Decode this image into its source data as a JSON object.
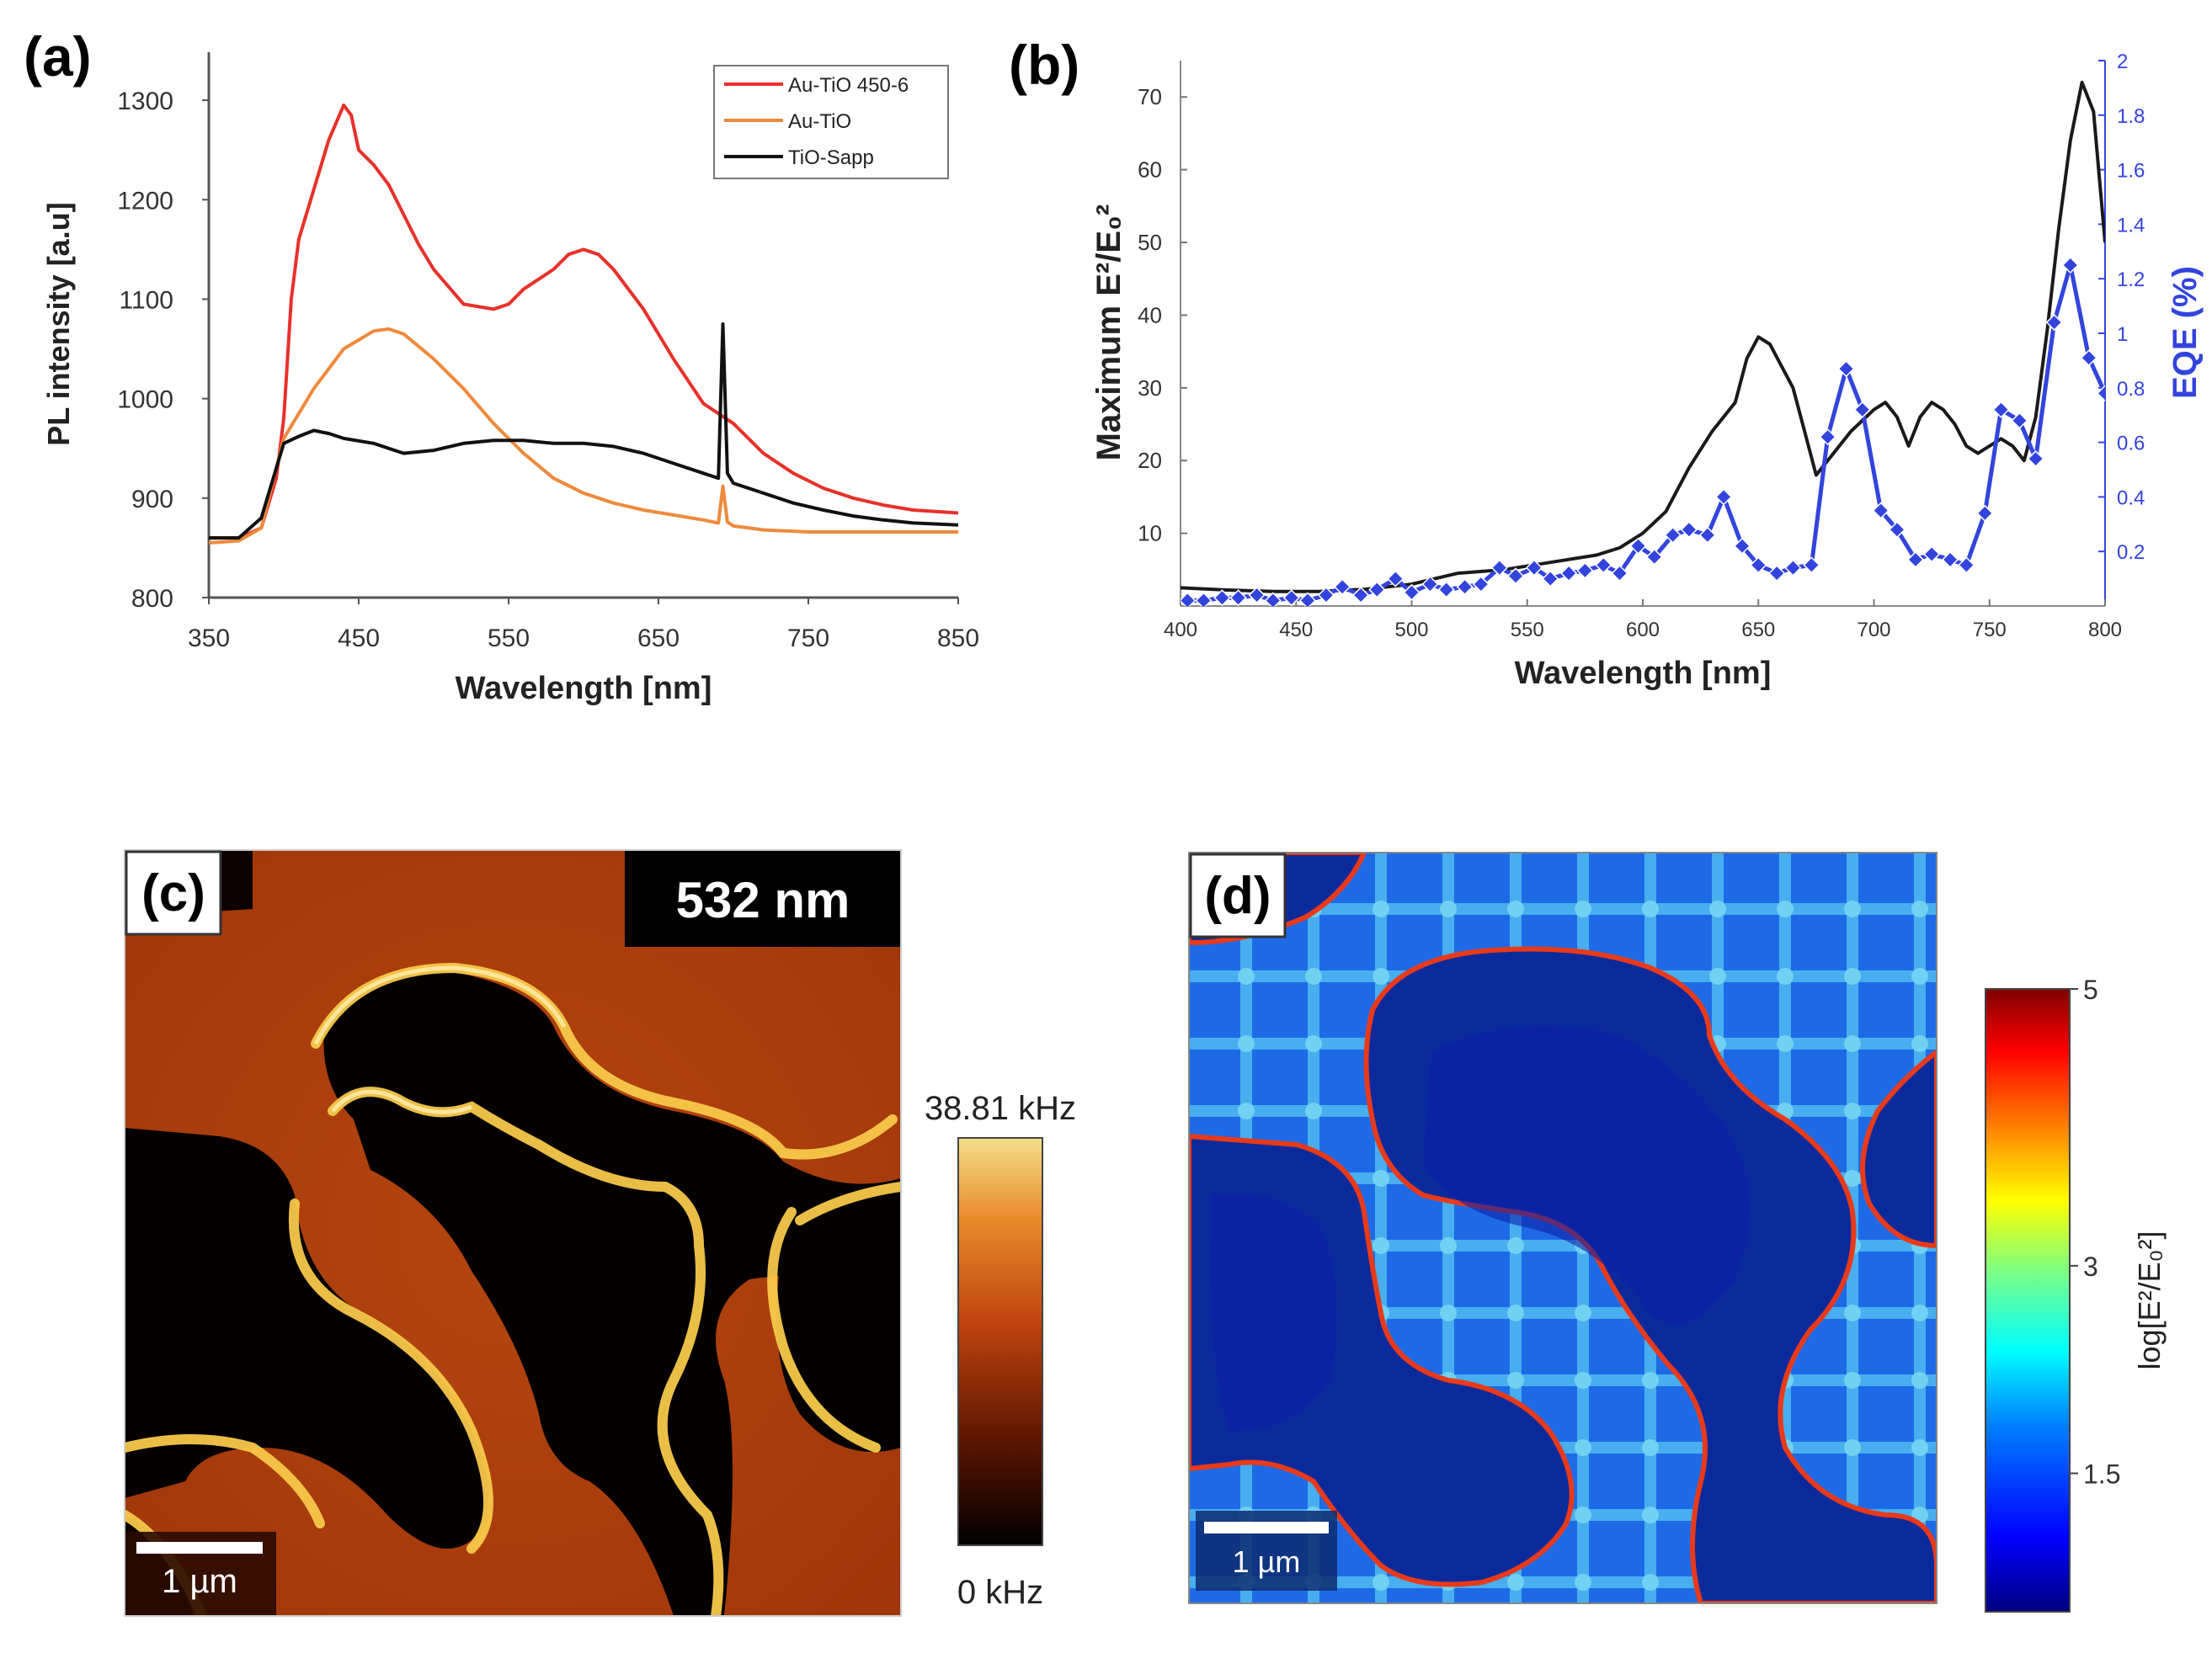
{
  "chart_data": [
    {
      "panel": "(a)",
      "type": "line",
      "title": "",
      "xlabel": "Wavelength [nm]",
      "ylabel": "PL intensity [a.u]",
      "xlim": [
        350,
        850
      ],
      "ylim": [
        800,
        1350
      ],
      "xticks": [
        350,
        450,
        550,
        650,
        750,
        850
      ],
      "yticks": [
        800,
        900,
        1000,
        1100,
        1200,
        1300
      ],
      "legend_position": "top-right",
      "series": [
        {
          "name": "Au-TiO 450-6",
          "color": "#e8302a",
          "x": [
            350,
            370,
            385,
            395,
            400,
            405,
            410,
            420,
            430,
            440,
            445,
            450,
            460,
            470,
            480,
            490,
            500,
            520,
            540,
            550,
            560,
            570,
            580,
            590,
            600,
            610,
            620,
            640,
            660,
            680,
            700,
            720,
            740,
            760,
            780,
            800,
            820,
            850
          ],
          "y": [
            860,
            860,
            870,
            920,
            980,
            1100,
            1160,
            1210,
            1260,
            1295,
            1285,
            1250,
            1235,
            1215,
            1185,
            1155,
            1130,
            1095,
            1090,
            1095,
            1110,
            1120,
            1130,
            1145,
            1150,
            1145,
            1130,
            1090,
            1040,
            995,
            975,
            945,
            925,
            910,
            900,
            893,
            888,
            885
          ]
        },
        {
          "name": "Au-TiO",
          "color": "#ee8a3c",
          "x": [
            350,
            370,
            385,
            400,
            420,
            440,
            460,
            470,
            480,
            500,
            520,
            540,
            560,
            580,
            600,
            620,
            640,
            660,
            680,
            690,
            693,
            696,
            700,
            720,
            750,
            800,
            850
          ],
          "y": [
            855,
            857,
            870,
            960,
            1010,
            1050,
            1068,
            1070,
            1065,
            1040,
            1010,
            975,
            945,
            920,
            905,
            895,
            888,
            883,
            878,
            875,
            912,
            876,
            872,
            868,
            866,
            866,
            866
          ]
        },
        {
          "name": "TiO-Sapp",
          "color": "#111111",
          "x": [
            350,
            370,
            385,
            400,
            410,
            420,
            430,
            440,
            460,
            480,
            500,
            520,
            540,
            560,
            580,
            600,
            620,
            640,
            660,
            680,
            690,
            693,
            696,
            700,
            720,
            740,
            760,
            780,
            800,
            820,
            850
          ],
          "y": [
            860,
            860,
            880,
            955,
            962,
            968,
            965,
            960,
            955,
            945,
            948,
            955,
            958,
            958,
            955,
            955,
            952,
            945,
            935,
            925,
            920,
            1075,
            925,
            915,
            905,
            895,
            888,
            882,
            878,
            875,
            873
          ]
        }
      ]
    },
    {
      "panel": "(b)",
      "type": "line",
      "title": "",
      "xlabel": "Wavelength [nm]",
      "ylabel": "Maximum E²/E₀²",
      "y2label": "EQE (%)",
      "xlim": [
        400,
        800
      ],
      "ylim": [
        0,
        75
      ],
      "y2lim": [
        0,
        2
      ],
      "xticks": [
        400,
        450,
        500,
        550,
        600,
        650,
        700,
        750,
        800
      ],
      "yticks": [
        10,
        20,
        30,
        40,
        50,
        60,
        70
      ],
      "y2ticks": [
        0.2,
        0.4,
        0.6,
        0.8,
        1,
        1.2,
        1.4,
        1.6,
        1.8,
        2
      ],
      "y2tick_labels": [
        "0.2",
        "0.4",
        "0.6",
        "0.8",
        "1",
        "1.2",
        "1.4",
        "1.6",
        "1.8",
        "2"
      ],
      "series": [
        {
          "name": "Maximum E²/E₀²",
          "axis": "left",
          "color": "#1a1a1a",
          "x": [
            400,
            420,
            440,
            460,
            480,
            500,
            520,
            540,
            560,
            580,
            590,
            600,
            610,
            620,
            630,
            640,
            645,
            650,
            655,
            660,
            665,
            670,
            675,
            680,
            690,
            700,
            705,
            710,
            715,
            720,
            725,
            730,
            735,
            740,
            745,
            750,
            755,
            760,
            765,
            770,
            775,
            780,
            785,
            790,
            795,
            800
          ],
          "y": [
            2.5,
            2.2,
            2,
            2,
            2.3,
            3,
            4.5,
            5,
            6,
            7,
            8,
            10,
            13,
            19,
            24,
            28,
            34,
            37,
            36,
            33,
            30,
            24,
            18,
            20,
            24,
            27,
            28,
            26,
            22,
            26,
            28,
            27,
            25,
            22,
            21,
            22,
            23,
            22,
            20,
            26,
            38,
            52,
            64,
            72,
            68,
            50
          ]
        },
        {
          "name": "EQE (%)",
          "axis": "right",
          "color": "#3344dd",
          "marker": "diamond",
          "x": [
            403,
            410,
            418,
            425,
            433,
            440,
            448,
            455,
            463,
            470,
            478,
            485,
            493,
            500,
            508,
            515,
            523,
            530,
            538,
            545,
            553,
            560,
            568,
            575,
            583,
            590,
            598,
            605,
            613,
            620,
            628,
            635,
            643,
            650,
            658,
            665,
            673,
            680,
            688,
            695,
            703,
            710,
            718,
            725,
            733,
            740,
            748,
            755,
            763,
            770,
            778,
            785,
            793,
            800
          ],
          "y": [
            0.02,
            0.02,
            0.03,
            0.03,
            0.04,
            0.02,
            0.03,
            0.02,
            0.04,
            0.07,
            0.04,
            0.06,
            0.1,
            0.05,
            0.08,
            0.06,
            0.07,
            0.08,
            0.14,
            0.11,
            0.14,
            0.1,
            0.12,
            0.13,
            0.15,
            0.12,
            0.22,
            0.18,
            0.26,
            0.28,
            0.26,
            0.4,
            0.22,
            0.15,
            0.12,
            0.14,
            0.15,
            0.62,
            0.87,
            0.72,
            0.35,
            0.28,
            0.17,
            0.19,
            0.17,
            0.15,
            0.34,
            0.72,
            0.68,
            0.54,
            1.04,
            1.25,
            0.91,
            0.78
          ]
        }
      ]
    },
    {
      "panel": "(c)",
      "type": "heatmap",
      "title": "532 nm",
      "colorbar": {
        "max_label": "38.81 kHz",
        "min_label": "0 kHz",
        "colors": [
          "#000000",
          "#5a1400",
          "#c0450f",
          "#e88a2a",
          "#f4e08a"
        ]
      },
      "scalebar_label": "1 µm"
    },
    {
      "panel": "(d)",
      "type": "heatmap",
      "title": "",
      "colorbar": {
        "label": "log[E²/E₀²]",
        "ticks": [
          1.5,
          3,
          5
        ],
        "tick_labels": [
          "1.5",
          "3",
          "5"
        ],
        "range": [
          0.5,
          5
        ],
        "colors": [
          "#000080",
          "#0000ff",
          "#0080ff",
          "#00ffff",
          "#80ff80",
          "#ffff00",
          "#ff8000",
          "#ff0000",
          "#800000"
        ]
      },
      "scalebar_label": "1 µm"
    }
  ],
  "labels": {
    "a": "(a)",
    "b": "(b)",
    "c": "(c)",
    "d": "(d)"
  },
  "colors": {
    "au_tio_4506": "#e8302a",
    "au_tio": "#ee8a3c",
    "tio_sapp": "#111111",
    "eqe": "#3344dd"
  }
}
